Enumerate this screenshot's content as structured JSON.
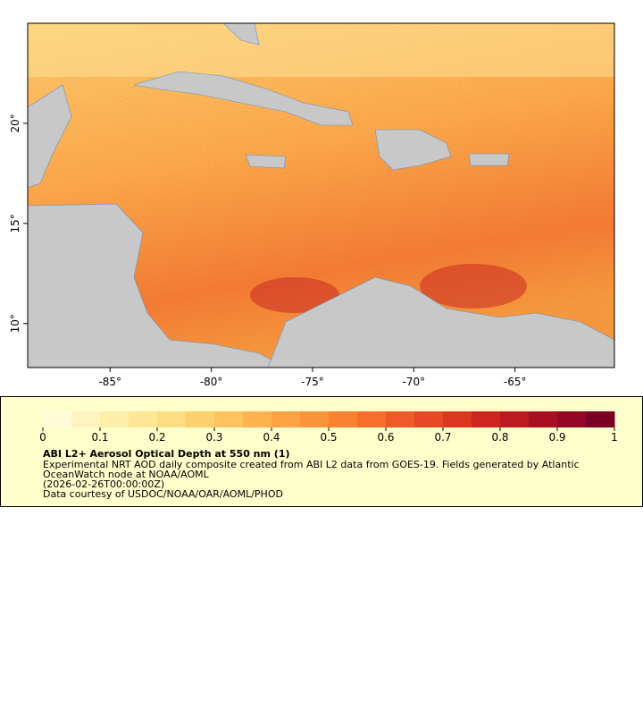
{
  "map": {
    "xlim": [
      -89.07,
      -60.09
    ],
    "ylim": [
      7.8,
      25.0
    ],
    "xticks": [
      {
        "value": -85,
        "label": "-85°"
      },
      {
        "value": -80,
        "label": "-80°"
      },
      {
        "value": -75,
        "label": "-75°"
      },
      {
        "value": -70,
        "label": "-70°"
      },
      {
        "value": -65,
        "label": "-65°"
      }
    ],
    "yticks": [
      {
        "value": 10,
        "label": "10°"
      },
      {
        "value": 15,
        "label": "15°"
      },
      {
        "value": 20,
        "label": "20°"
      }
    ]
  },
  "colorbar": {
    "lim": [
      0,
      1
    ],
    "ticks": [
      0,
      0.1,
      0.2,
      0.3,
      0.4,
      0.5,
      0.6,
      0.7,
      0.8,
      0.9,
      1
    ],
    "colors": [
      "#fffbd8",
      "#fff4c0",
      "#ffeeaa",
      "#fee696",
      "#fedc82",
      "#fdd06e",
      "#fdc35e",
      "#fdb44f",
      "#fca444",
      "#fb943a",
      "#f98232",
      "#f56e2c",
      "#ef5a28",
      "#e74724",
      "#dc3621",
      "#ce251f",
      "#bd1920",
      "#a90f23",
      "#940826",
      "#7c0026"
    ]
  },
  "legend": {
    "title": "ABI L2+ Aerosol Optical Depth at 550 nm (1)",
    "lines": [
      "Experimental NRT AOD daily composite created from ABI L2 data from GOES-19. Fields generated by Atlantic",
      "OceanWatch node at NOAA/AOML",
      "(2026-02-26T00:00:00Z)",
      "Data courtesy of USDOC/NOAA/OAR/AOML/PHOD"
    ]
  }
}
